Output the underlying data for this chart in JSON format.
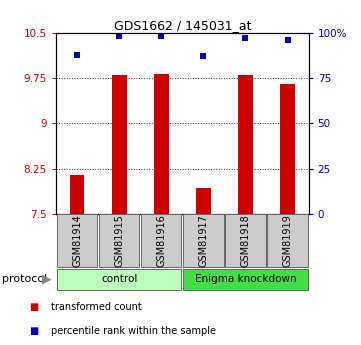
{
  "title": "GDS1662 / 145031_at",
  "samples": [
    "GSM81914",
    "GSM81915",
    "GSM81916",
    "GSM81917",
    "GSM81918",
    "GSM81919"
  ],
  "red_values": [
    8.15,
    9.8,
    9.82,
    7.93,
    9.8,
    9.65
  ],
  "blue_values": [
    88,
    98,
    98,
    87,
    97,
    96
  ],
  "ylim_left": [
    7.5,
    10.5
  ],
  "ylim_right": [
    0,
    100
  ],
  "yticks_left": [
    7.5,
    8.25,
    9.0,
    9.75,
    10.5
  ],
  "ytick_labels_left": [
    "7.5",
    "8.25",
    "9",
    "9.75",
    "10.5"
  ],
  "yticks_right": [
    0,
    25,
    50,
    75,
    100
  ],
  "ytick_labels_right": [
    "0",
    "25",
    "50",
    "75",
    "100%"
  ],
  "red_color": "#cc0000",
  "blue_color": "#0000bb",
  "bar_bottom": 7.5,
  "bar_width": 0.35,
  "groups": [
    {
      "label": "control",
      "indices": [
        0,
        1,
        2
      ],
      "color": "#bbffbb"
    },
    {
      "label": "Enigma knockdown",
      "indices": [
        3,
        4,
        5
      ],
      "color": "#44dd44"
    }
  ],
  "protocol_label": "protocol",
  "legend_red": "transformed count",
  "legend_blue": "percentile rank within the sample",
  "sample_box_color": "#cccccc",
  "sample_box_edge": "#666666",
  "dotted_line_color": "#333333",
  "marker_size": 5,
  "title_fontsize": 9,
  "tick_fontsize": 7.5,
  "label_fontsize": 7,
  "group_fontsize": 7.5,
  "legend_fontsize": 7
}
